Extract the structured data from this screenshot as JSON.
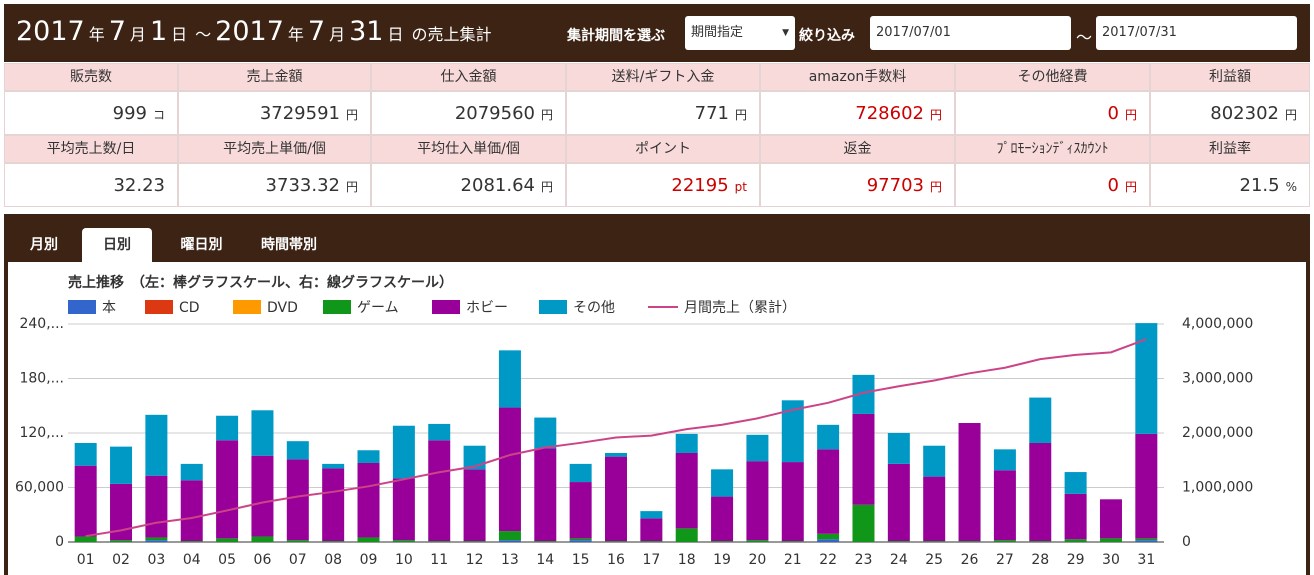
{
  "header": {
    "title_parts": [
      "2017",
      "年",
      "7",
      "月",
      "1",
      "日",
      "～",
      "2017",
      "年",
      "7",
      "月",
      "31",
      "日",
      "の売上集計"
    ],
    "period_label": "集計期間を選ぶ",
    "period_select": "期間指定",
    "filter_label": "絞り込み",
    "date_from": "2017/07/01",
    "separator": "～",
    "date_to": "2017/07/31"
  },
  "stats": {
    "rows": [
      {
        "headers": [
          "販売数",
          "売上金額",
          "仕入金額",
          "送料/ギフト入金",
          "amazon手数料",
          "その他経費",
          "利益額"
        ],
        "cells": [
          {
            "value": "999",
            "unit": "コ"
          },
          {
            "value": "3729591",
            "unit": "円"
          },
          {
            "value": "2079560",
            "unit": "円"
          },
          {
            "value": "771",
            "unit": "円"
          },
          {
            "value": "728602",
            "unit": "円",
            "color": "#cc0000"
          },
          {
            "value": "0",
            "unit": "円",
            "color": "#cc0000"
          },
          {
            "value": "802302",
            "unit": "円"
          }
        ]
      },
      {
        "headers": [
          "平均売上数/日",
          "平均売上単価/個",
          "平均仕入単価/個",
          "ポイント",
          "返金",
          "ﾌﾟﾛﾓｰｼｮﾝﾃﾞｨｽｶｳﾝﾄ",
          "利益率"
        ],
        "cells": [
          {
            "value": "32.23"
          },
          {
            "value": "3733.32",
            "unit": "円"
          },
          {
            "value": "2081.64",
            "unit": "円"
          },
          {
            "value": "22195",
            "unit": "pt",
            "color": "#cc0000"
          },
          {
            "value": "97703",
            "unit": "円",
            "color": "#cc0000"
          },
          {
            "value": "0",
            "unit": "円",
            "color": "#cc0000"
          },
          {
            "value": "21.5",
            "unit": "%"
          }
        ]
      }
    ]
  },
  "tabs": {
    "items": [
      "月別",
      "日別",
      "曜日別",
      "時間帯別"
    ],
    "active": 1
  },
  "chart_data": {
    "type": "bar",
    "stacked": true,
    "title": "売上推移　（左：棒グラフスケール、右：線グラフスケール）",
    "categories": [
      "01",
      "02",
      "03",
      "04",
      "05",
      "06",
      "07",
      "08",
      "09",
      "10",
      "11",
      "12",
      "13",
      "14",
      "15",
      "16",
      "17",
      "18",
      "19",
      "20",
      "21",
      "22",
      "23",
      "24",
      "25",
      "26",
      "27",
      "28",
      "29",
      "30",
      "31"
    ],
    "series": [
      {
        "name": "本",
        "color": "#3366cc",
        "values": [
          0,
          0,
          2000,
          0,
          0,
          0,
          0,
          0,
          0,
          0,
          0,
          0,
          2000,
          0,
          2000,
          0,
          0,
          0,
          0,
          0,
          0,
          3000,
          0,
          0,
          0,
          0,
          0,
          0,
          0,
          0,
          2000
        ]
      },
      {
        "name": "CD",
        "color": "#dc3912",
        "values": [
          0,
          0,
          0,
          0,
          0,
          0,
          0,
          0,
          0,
          0,
          0,
          0,
          0,
          0,
          0,
          0,
          0,
          0,
          0,
          0,
          0,
          0,
          0,
          0,
          0,
          0,
          0,
          0,
          0,
          0,
          0
        ]
      },
      {
        "name": "DVD",
        "color": "#ff9900",
        "values": [
          0,
          0,
          0,
          0,
          0,
          0,
          0,
          0,
          0,
          0,
          0,
          0,
          0,
          0,
          0,
          0,
          0,
          0,
          0,
          0,
          0,
          0,
          0,
          0,
          0,
          0,
          0,
          0,
          0,
          0,
          0
        ]
      },
      {
        "name": "ゲーム",
        "color": "#109618",
        "values": [
          6000,
          2000,
          3000,
          1000,
          4000,
          6000,
          2000,
          1000,
          5000,
          2000,
          1000,
          1000,
          10000,
          1000,
          2000,
          1000,
          1000,
          15000,
          1000,
          2000,
          1000,
          6000,
          41000,
          1000,
          1000,
          1000,
          2000,
          1000,
          3000,
          4000,
          2000
        ]
      },
      {
        "name": "ホビー",
        "color": "#990099",
        "values": [
          78000,
          62000,
          68000,
          67000,
          108000,
          89000,
          89000,
          80000,
          82000,
          68000,
          111000,
          79000,
          136000,
          102000,
          62000,
          93000,
          25000,
          83000,
          49000,
          87000,
          87000,
          93000,
          100000,
          85000,
          71000,
          130000,
          77000,
          108000,
          50000,
          43000,
          115000
        ]
      },
      {
        "name": "その他",
        "color": "#0099c6",
        "values": [
          25000,
          41000,
          67000,
          18000,
          27000,
          50000,
          20000,
          5000,
          14000,
          58000,
          18000,
          26000,
          63000,
          34000,
          20000,
          4000,
          8000,
          21000,
          30000,
          29000,
          68000,
          27000,
          43000,
          34000,
          34000,
          0,
          23000,
          50000,
          24000,
          0,
          122000
        ]
      },
      {
        "name": "月間売上（累計）",
        "color": "#cc4488",
        "type": "line",
        "axis": "y2",
        "values": [
          109000,
          214000,
          354000,
          440000,
          579000,
          724000,
          835000,
          921000,
          1022000,
          1150000,
          1280000,
          1386000,
          1597000,
          1734000,
          1820000,
          1918000,
          1952000,
          2071000,
          2151000,
          2269000,
          2425000,
          2554000,
          2738000,
          2858000,
          2964000,
          3095000,
          3197000,
          3356000,
          3433000,
          3480000,
          3721000
        ]
      }
    ],
    "ylim": [
      0,
      240000
    ],
    "yticks": [
      0,
      {
        "value": 60000,
        "label": "60,000"
      },
      {
        "value": 120000,
        "label": "120,..."
      },
      {
        "value": 180000,
        "label": "180,..."
      },
      {
        "value": 240000,
        "label": "240,..."
      }
    ],
    "y2lim": [
      0,
      4000000
    ],
    "y2ticks": [
      0,
      {
        "value": 1000000,
        "label": "1,000,000"
      },
      {
        "value": 2000000,
        "label": "2,000,000"
      },
      {
        "value": 3000000,
        "label": "3,000,000"
      },
      {
        "value": 4000000,
        "label": "4,000,000"
      }
    ],
    "grid": true,
    "legend": "top"
  }
}
